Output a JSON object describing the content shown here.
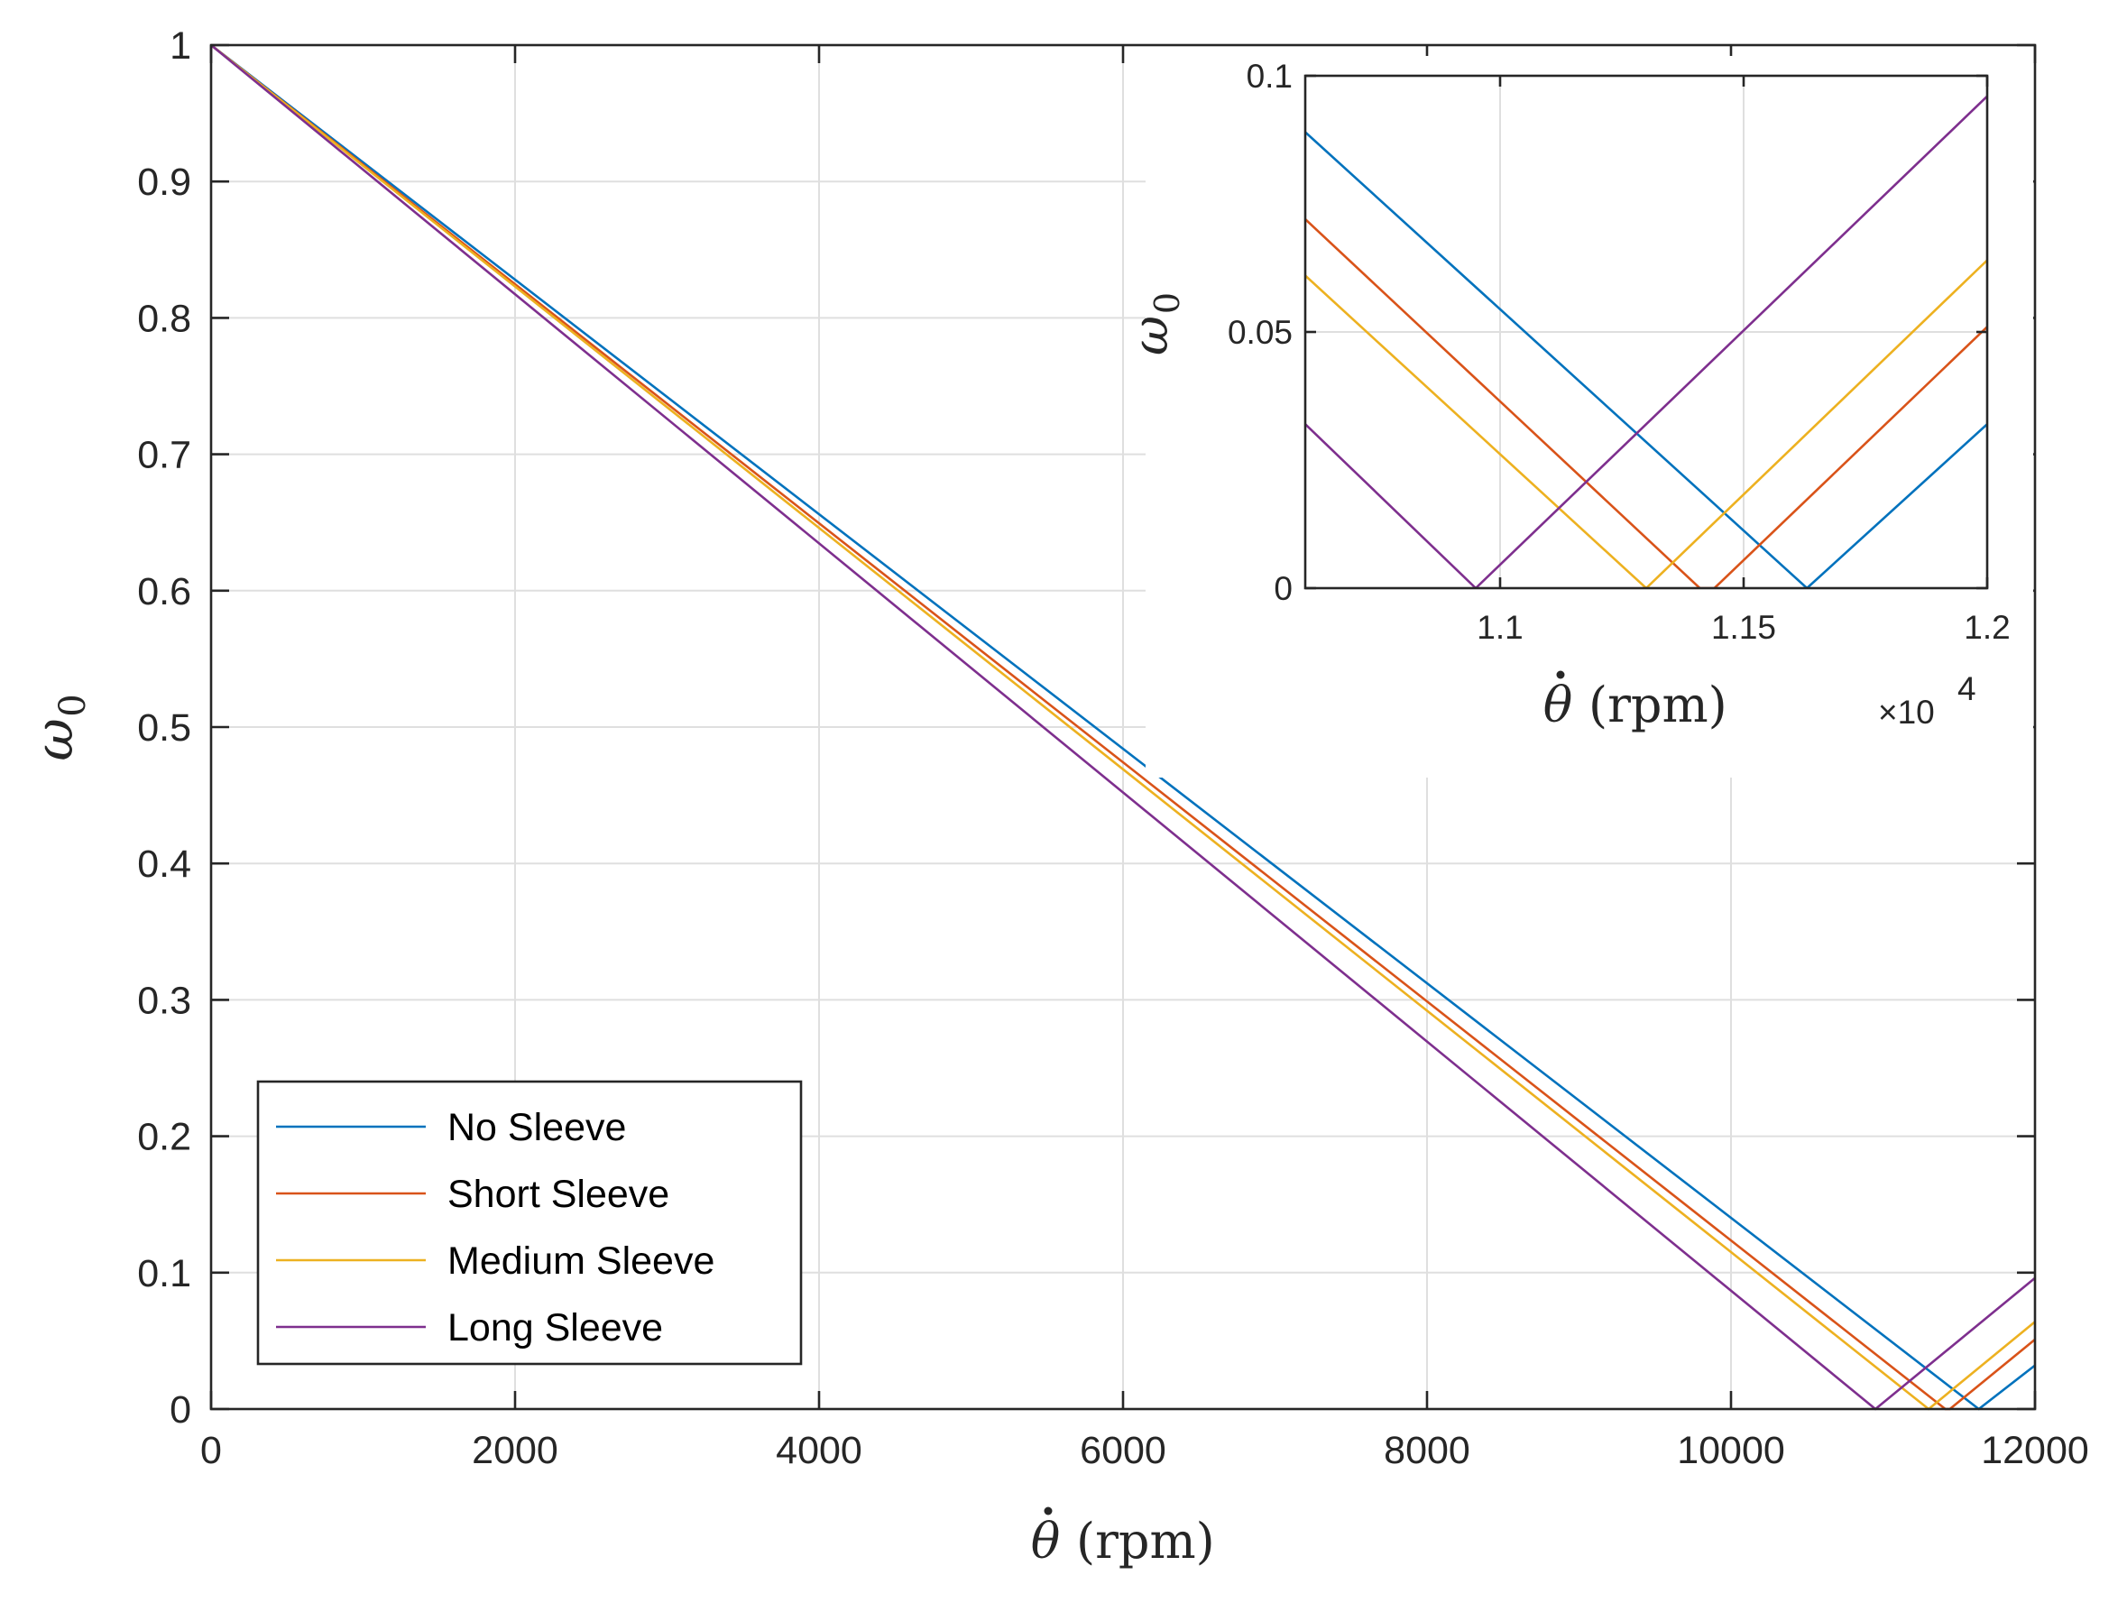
{
  "chart_data": [
    {
      "name": "main",
      "type": "line",
      "xlabel": "θ̇ (rpm)",
      "xlabel_symbol": "θ",
      "xlabel_unit": "(rpm)",
      "ylabel": "ω0",
      "ylabel_symbol": "ω",
      "ylabel_sub": "0",
      "xlim": [
        0,
        12000
      ],
      "ylim": [
        0,
        1
      ],
      "grid": true,
      "xticks": [
        0,
        2000,
        4000,
        6000,
        8000,
        10000,
        12000
      ],
      "xtick_labels": [
        "0",
        "2000",
        "4000",
        "6000",
        "8000",
        "10000",
        "12000"
      ],
      "yticks": [
        0,
        0.1,
        0.2,
        0.3,
        0.4,
        0.5,
        0.6,
        0.7,
        0.8,
        0.9,
        1
      ],
      "ytick_labels": [
        "0",
        "0.1",
        "0.2",
        "0.3",
        "0.4",
        "0.5",
        "0.6",
        "0.7",
        "0.8",
        "0.9",
        "1"
      ],
      "legend_position": "bottom-left",
      "series": [
        {
          "name": "No Sleeve",
          "color": "#0072BD",
          "x": [
            0,
            11630,
            12000
          ],
          "y": [
            1,
            0,
            0.032
          ]
        },
        {
          "name": "Short Sleeve",
          "color": "#D95319",
          "x": [
            0,
            11410,
            11440,
            12000
          ],
          "y": [
            1,
            0,
            0,
            0.051
          ]
        },
        {
          "name": "Medium Sleeve",
          "color": "#EDB120",
          "x": [
            0,
            11300,
            12000
          ],
          "y": [
            1,
            0,
            0.064
          ]
        },
        {
          "name": "Long Sleeve",
          "color": "#7E2F8E",
          "x": [
            0,
            10950,
            12000
          ],
          "y": [
            1,
            0,
            0.096
          ]
        }
      ]
    },
    {
      "name": "inset",
      "type": "line",
      "xlabel": "θ̇ (rpm)",
      "xlabel_symbol": "θ",
      "xlabel_unit": "(rpm)",
      "ylabel": "ω0",
      "ylabel_symbol": "ω",
      "ylabel_sub": "0",
      "xlim": [
        10600,
        12000
      ],
      "ylim": [
        0,
        0.1
      ],
      "grid": true,
      "xticks": [
        11000,
        11500,
        12000
      ],
      "xtick_labels": [
        "1.1",
        "1.15",
        "1.2"
      ],
      "x_exponent_base": "×10",
      "x_exponent": "4",
      "yticks": [
        0,
        0.05,
        0.1
      ],
      "ytick_labels": [
        "0",
        "0.05",
        "0.1"
      ],
      "series": [
        {
          "name": "No Sleeve",
          "color": "#0072BD",
          "x": [
            10600,
            11630,
            12000
          ],
          "y": [
            0.089,
            0,
            0.032
          ]
        },
        {
          "name": "Short Sleeve",
          "color": "#D95319",
          "x": [
            10600,
            11410,
            11440,
            12000
          ],
          "y": [
            0.072,
            0,
            0,
            0.051
          ]
        },
        {
          "name": "Medium Sleeve",
          "color": "#EDB120",
          "x": [
            10600,
            11300,
            12000
          ],
          "y": [
            0.061,
            0,
            0.064
          ]
        },
        {
          "name": "Long Sleeve",
          "color": "#7E2F8E",
          "x": [
            10600,
            10950,
            12000
          ],
          "y": [
            0.032,
            0,
            0.096
          ]
        }
      ]
    }
  ]
}
